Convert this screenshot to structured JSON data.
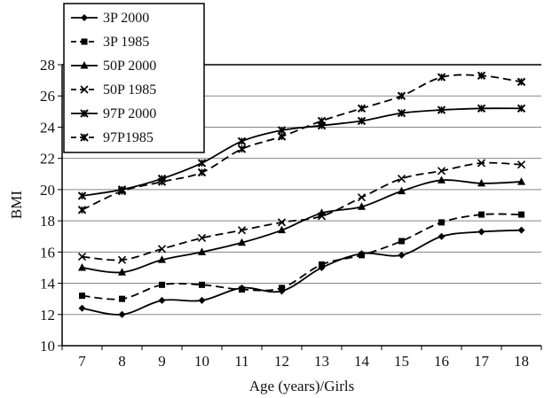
{
  "chart_data": {
    "type": "line",
    "title": "",
    "xlabel": "Age (years)/Girls",
    "ylabel": "BMI",
    "x": [
      7,
      8,
      9,
      10,
      11,
      12,
      13,
      14,
      15,
      16,
      17,
      18
    ],
    "xlim": [
      6.5,
      18.5
    ],
    "ylim": [
      10,
      28
    ],
    "yticks": [
      10,
      12,
      14,
      16,
      18,
      20,
      22,
      24,
      26,
      28
    ],
    "grid": "horizontal",
    "legend_position": "top-left",
    "series": [
      {
        "name": "3P 2000",
        "dash": "solid",
        "marker": "diamond",
        "values": [
          12.4,
          12.0,
          12.9,
          12.9,
          13.7,
          13.5,
          15.0,
          15.9,
          15.8,
          17.0,
          17.3,
          17.4
        ]
      },
      {
        "name": "3P 1985",
        "dash": "dashed",
        "marker": "square",
        "values": [
          13.2,
          13.0,
          13.9,
          13.9,
          13.6,
          13.7,
          15.2,
          15.8,
          16.7,
          17.9,
          18.4,
          18.4
        ]
      },
      {
        "name": "50P 2000",
        "dash": "solid",
        "marker": "triangle",
        "values": [
          15.0,
          14.7,
          15.5,
          16.0,
          16.6,
          17.4,
          18.5,
          18.9,
          19.9,
          20.6,
          20.4,
          20.5
        ]
      },
      {
        "name": "50P 1985",
        "dash": "dashed",
        "marker": "x",
        "values": [
          15.7,
          15.5,
          16.2,
          16.9,
          17.4,
          17.9,
          18.3,
          19.5,
          20.7,
          21.2,
          21.7,
          21.6
        ]
      },
      {
        "name": "97P 2000",
        "dash": "solid",
        "marker": "star",
        "values": [
          19.6,
          20.0,
          20.7,
          21.7,
          23.1,
          23.8,
          24.1,
          24.4,
          24.9,
          25.1,
          25.2,
          25.2
        ]
      },
      {
        "name": "97P1985",
        "dash": "dashed",
        "marker": "star",
        "values": [
          18.7,
          19.9,
          20.5,
          21.1,
          22.6,
          23.4,
          24.4,
          25.2,
          26.0,
          27.2,
          27.3,
          26.9
        ]
      }
    ]
  }
}
